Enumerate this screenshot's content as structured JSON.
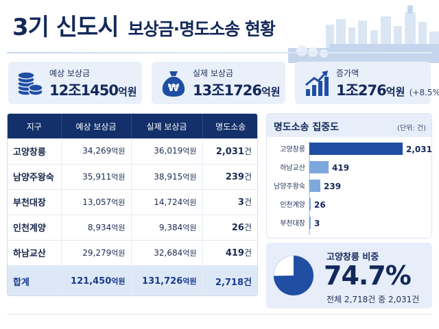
{
  "header": {
    "title_main": "3기 신도시",
    "title_sub": "보상금·명도소송 현황"
  },
  "cards": [
    {
      "label": "예상 보상금",
      "value": "12조1450",
      "unit": "억원",
      "note": "",
      "icon": "coins-stack-icon"
    },
    {
      "label": "실제 보상금",
      "value": "13조1726",
      "unit": "억원",
      "note": "",
      "icon": "money-bag-icon"
    },
    {
      "label": "증가액",
      "value": "1조276",
      "unit": "억원",
      "note": "(+8.5%)",
      "icon": "growth-chart-icon"
    }
  ],
  "table": {
    "headers": [
      "지구",
      "예상 보상금",
      "실제 보상금",
      "명도소송"
    ],
    "rows": [
      {
        "district": "고양창릉",
        "expected": "34,269",
        "actual": "36,019",
        "suits": "2,031"
      },
      {
        "district": "남양주왕숙",
        "expected": "35,911",
        "actual": "38,915",
        "suits": "239"
      },
      {
        "district": "부천대장",
        "expected": "13,057",
        "actual": "14,724",
        "suits": "3"
      },
      {
        "district": "인천계양",
        "expected": "8,934",
        "actual": "9,384",
        "suits": "26"
      },
      {
        "district": "하남교산",
        "expected": "29,279",
        "actual": "32,684",
        "suits": "419"
      }
    ],
    "money_unit": "억원",
    "count_unit": "건",
    "total": {
      "label": "합계",
      "expected": "121,450",
      "actual": "131,726",
      "suits": "2,718"
    }
  },
  "chart_data": {
    "type": "bar",
    "orientation": "horizontal",
    "title": "명도소송 집중도",
    "unit_note": "(단위: 건)",
    "categories": [
      "고양창릉",
      "하남교산",
      "남양주왕숙",
      "인천계양",
      "부천대장"
    ],
    "values": [
      2031,
      419,
      239,
      26,
      3
    ],
    "value_labels": [
      "2,031",
      "419",
      "239",
      "26",
      "3"
    ],
    "xlim": [
      0,
      2031
    ],
    "colors": {
      "top": "#1f4ea3",
      "rest": "#7ea8dd"
    },
    "grid": false
  },
  "share": {
    "label": "고양창릉 비중",
    "value": "74.7%",
    "fraction": 0.747,
    "note": "전체 2,718건 중 2,031건",
    "colors": {
      "main": "#1f4ea3",
      "rest": "#ffffff"
    }
  }
}
